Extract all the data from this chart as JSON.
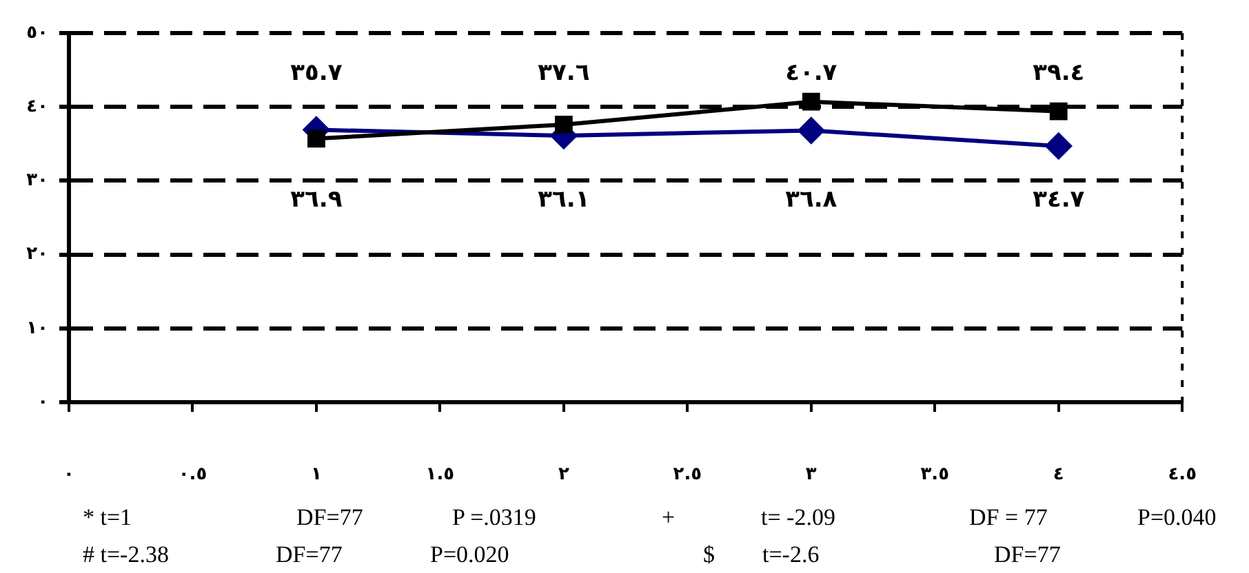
{
  "chart_data": {
    "type": "line",
    "x": [
      1,
      2,
      3,
      4
    ],
    "series": [
      {
        "color": "#000000",
        "marker": "square",
        "values": [
          35.7,
          37.6,
          40.7,
          39.4
        ],
        "value_labels": [
          "٣٥.٧",
          "٣٧.٦",
          "٤٠.٧",
          "٣٩.٤"
        ]
      },
      {
        "color": "#000080",
        "marker": "diamond",
        "values": [
          36.9,
          36.1,
          36.8,
          34.7
        ],
        "value_labels": [
          "٣٦.٩",
          "٣٦.١",
          "٣٦.٨",
          "٣٤.٧"
        ]
      }
    ],
    "xlim": [
      0,
      4.5
    ],
    "xticks": [
      {
        "value": 0,
        "label": "٠"
      },
      {
        "value": 0.5,
        "label": "٠.٥"
      },
      {
        "value": 1,
        "label": "١"
      },
      {
        "value": 1.5,
        "label": "١.٥"
      },
      {
        "value": 2,
        "label": "٢"
      },
      {
        "value": 2.5,
        "label": "٢.٥"
      },
      {
        "value": 3,
        "label": "٣"
      },
      {
        "value": 3.5,
        "label": "٣.٥"
      },
      {
        "value": 4,
        "label": "٤"
      },
      {
        "value": 4.5,
        "label": "٤.٥"
      }
    ],
    "ylim": [
      0,
      50
    ],
    "yticks": [
      {
        "value": 0,
        "label": "٠"
      },
      {
        "value": 10,
        "label": "١٠"
      },
      {
        "value": 20,
        "label": "٢٠"
      },
      {
        "value": 30,
        "label": "٣٠"
      },
      {
        "value": 40,
        "label": "٤٠"
      },
      {
        "value": 50,
        "label": "٥٠"
      }
    ],
    "grid": "y",
    "legend": false,
    "line_style": "solid",
    "annotations": [
      "* t=1",
      "DF=77",
      "P =.0319",
      "+",
      "t= -2.09",
      "DF = 77",
      "P=0.040",
      "# t=-2.38",
      "DF=77",
      "P=0.020",
      "$",
      "t=-2.6",
      "DF=77"
    ]
  }
}
